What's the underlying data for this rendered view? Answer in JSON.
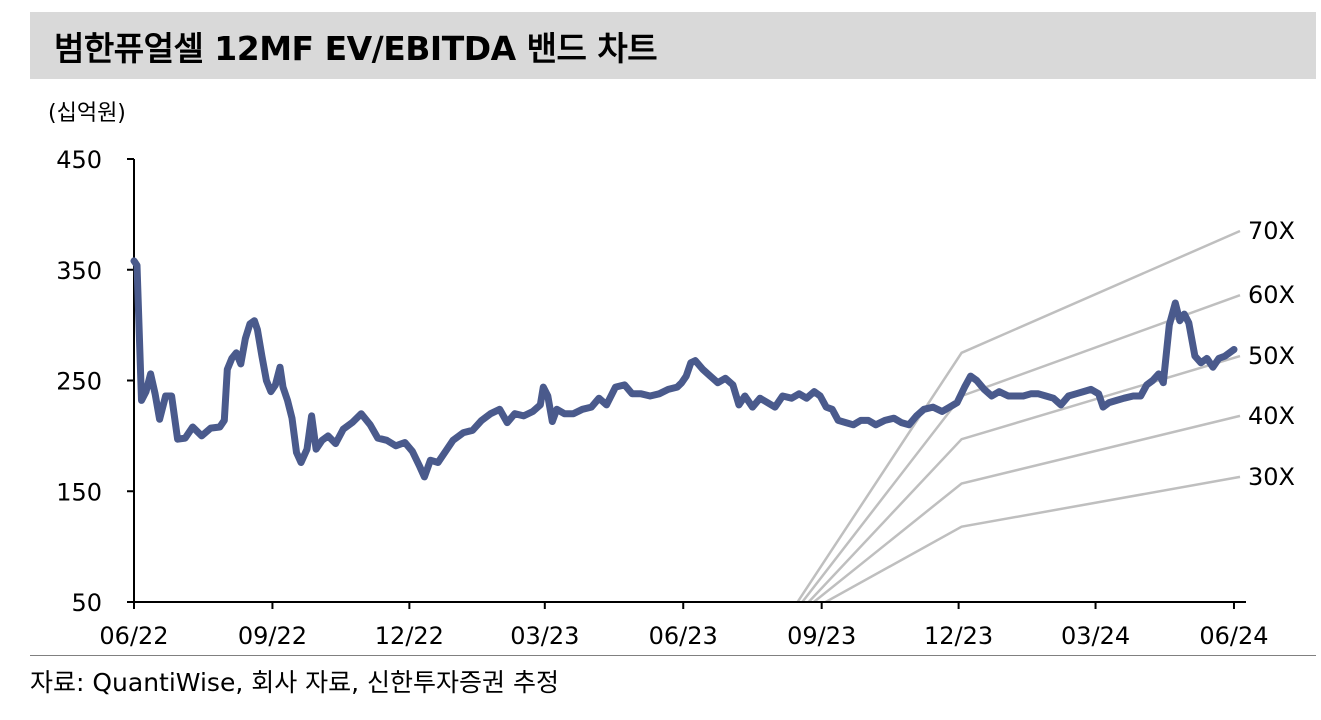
{
  "header": {
    "title": "범한퓨얼셀 12MF EV/EBITDA 밴드 차트"
  },
  "unit_label": "(십억원)",
  "source": "자료: QuantiWise, 회사 자료, 신한투자증권 추정",
  "colors": {
    "price_line": "#4a5a8c",
    "band_line": "#bfbfbf",
    "title_bg": "#d9d9d9",
    "axis": "#000000"
  },
  "chart_data": {
    "type": "line",
    "title": "범한퓨얼셀 12MF EV/EBITDA 밴드 차트",
    "ylabel": "(십억원)",
    "xlabel": "",
    "ylim": [
      50,
      450
    ],
    "y_ticks": [
      450,
      350,
      250,
      150,
      50
    ],
    "x_range": [
      "2022-06-01",
      "2024-06-05"
    ],
    "x_ticks": [
      {
        "date": "2022-06-01",
        "label": "06/22"
      },
      {
        "date": "2022-09-01",
        "label": "09/22"
      },
      {
        "date": "2022-12-01",
        "label": "12/22"
      },
      {
        "date": "2023-03-01",
        "label": "03/23"
      },
      {
        "date": "2023-06-01",
        "label": "06/23"
      },
      {
        "date": "2023-09-01",
        "label": "09/23"
      },
      {
        "date": "2023-12-01",
        "label": "12/23"
      },
      {
        "date": "2024-03-01",
        "label": "03/24"
      },
      {
        "date": "2024-06-01",
        "label": "06/24"
      }
    ],
    "grid": false,
    "legend": "none",
    "series": [
      {
        "role": "price",
        "points": [
          [
            "2022-06-01",
            358
          ],
          [
            "2022-06-03",
            354
          ],
          [
            "2022-06-06",
            232
          ],
          [
            "2022-06-09",
            240
          ],
          [
            "2022-06-12",
            256
          ],
          [
            "2022-06-15",
            238
          ],
          [
            "2022-06-18",
            215
          ],
          [
            "2022-06-22",
            236
          ],
          [
            "2022-06-26",
            236
          ],
          [
            "2022-06-30",
            197
          ],
          [
            "2022-07-05",
            198
          ],
          [
            "2022-07-10",
            208
          ],
          [
            "2022-07-16",
            200
          ],
          [
            "2022-07-22",
            207
          ],
          [
            "2022-07-28",
            208
          ],
          [
            "2022-07-31",
            214
          ],
          [
            "2022-08-02",
            260
          ],
          [
            "2022-08-05",
            270
          ],
          [
            "2022-08-08",
            275
          ],
          [
            "2022-08-11",
            265
          ],
          [
            "2022-08-14",
            288
          ],
          [
            "2022-08-17",
            301
          ],
          [
            "2022-08-20",
            304
          ],
          [
            "2022-08-22",
            296
          ],
          [
            "2022-08-25",
            272
          ],
          [
            "2022-08-28",
            250
          ],
          [
            "2022-08-31",
            240
          ],
          [
            "2022-09-03",
            246
          ],
          [
            "2022-09-06",
            262
          ],
          [
            "2022-09-08",
            244
          ],
          [
            "2022-09-11",
            232
          ],
          [
            "2022-09-14",
            216
          ],
          [
            "2022-09-17",
            185
          ],
          [
            "2022-09-20",
            176
          ],
          [
            "2022-09-24",
            188
          ],
          [
            "2022-09-27",
            218
          ],
          [
            "2022-09-30",
            188
          ],
          [
            "2022-10-04",
            196
          ],
          [
            "2022-10-08",
            200
          ],
          [
            "2022-10-13",
            193
          ],
          [
            "2022-10-18",
            206
          ],
          [
            "2022-10-24",
            212
          ],
          [
            "2022-10-30",
            220
          ],
          [
            "2022-11-05",
            210
          ],
          [
            "2022-11-10",
            198
          ],
          [
            "2022-11-16",
            196
          ],
          [
            "2022-11-22",
            191
          ],
          [
            "2022-11-28",
            194
          ],
          [
            "2022-12-03",
            186
          ],
          [
            "2022-12-08",
            172
          ],
          [
            "2022-12-11",
            163
          ],
          [
            "2022-12-15",
            178
          ],
          [
            "2022-12-20",
            176
          ],
          [
            "2022-12-25",
            186
          ],
          [
            "2022-12-30",
            196
          ],
          [
            "2023-01-06",
            203
          ],
          [
            "2023-01-12",
            205
          ],
          [
            "2023-01-18",
            214
          ],
          [
            "2023-01-24",
            220
          ],
          [
            "2023-01-30",
            224
          ],
          [
            "2023-02-04",
            212
          ],
          [
            "2023-02-09",
            220
          ],
          [
            "2023-02-15",
            218
          ],
          [
            "2023-02-21",
            222
          ],
          [
            "2023-02-26",
            228
          ],
          [
            "2023-02-28",
            244
          ],
          [
            "2023-03-03",
            236
          ],
          [
            "2023-03-06",
            213
          ],
          [
            "2023-03-09",
            224
          ],
          [
            "2023-03-14",
            220
          ],
          [
            "2023-03-20",
            220
          ],
          [
            "2023-03-26",
            224
          ],
          [
            "2023-04-01",
            226
          ],
          [
            "2023-04-06",
            234
          ],
          [
            "2023-04-11",
            228
          ],
          [
            "2023-04-17",
            244
          ],
          [
            "2023-04-23",
            246
          ],
          [
            "2023-04-28",
            238
          ],
          [
            "2023-05-04",
            238
          ],
          [
            "2023-05-10",
            236
          ],
          [
            "2023-05-16",
            238
          ],
          [
            "2023-05-22",
            242
          ],
          [
            "2023-05-28",
            244
          ],
          [
            "2023-05-31",
            248
          ],
          [
            "2023-06-03",
            254
          ],
          [
            "2023-06-06",
            266
          ],
          [
            "2023-06-09",
            268
          ],
          [
            "2023-06-14",
            260
          ],
          [
            "2023-06-19",
            254
          ],
          [
            "2023-06-24",
            248
          ],
          [
            "2023-06-29",
            252
          ],
          [
            "2023-07-04",
            246
          ],
          [
            "2023-07-08",
            228
          ],
          [
            "2023-07-12",
            236
          ],
          [
            "2023-07-17",
            226
          ],
          [
            "2023-07-22",
            234
          ],
          [
            "2023-07-27",
            230
          ],
          [
            "2023-08-01",
            226
          ],
          [
            "2023-08-06",
            236
          ],
          [
            "2023-08-12",
            234
          ],
          [
            "2023-08-17",
            238
          ],
          [
            "2023-08-22",
            234
          ],
          [
            "2023-08-27",
            240
          ],
          [
            "2023-08-31",
            236
          ],
          [
            "2023-09-04",
            226
          ],
          [
            "2023-09-08",
            224
          ],
          [
            "2023-09-12",
            214
          ],
          [
            "2023-09-17",
            212
          ],
          [
            "2023-09-22",
            210
          ],
          [
            "2023-09-27",
            214
          ],
          [
            "2023-10-02",
            214
          ],
          [
            "2023-10-07",
            210
          ],
          [
            "2023-10-13",
            214
          ],
          [
            "2023-10-19",
            216
          ],
          [
            "2023-10-24",
            212
          ],
          [
            "2023-10-29",
            210
          ],
          [
            "2023-11-03",
            218
          ],
          [
            "2023-11-08",
            224
          ],
          [
            "2023-11-14",
            226
          ],
          [
            "2023-11-20",
            222
          ],
          [
            "2023-11-25",
            226
          ],
          [
            "2023-11-30",
            230
          ],
          [
            "2023-12-05",
            244
          ],
          [
            "2023-12-09",
            254
          ],
          [
            "2023-12-13",
            250
          ],
          [
            "2023-12-18",
            242
          ],
          [
            "2023-12-23",
            236
          ],
          [
            "2023-12-28",
            240
          ],
          [
            "2024-01-03",
            236
          ],
          [
            "2024-01-08",
            236
          ],
          [
            "2024-01-13",
            236
          ],
          [
            "2024-01-18",
            238
          ],
          [
            "2024-01-23",
            238
          ],
          [
            "2024-01-28",
            236
          ],
          [
            "2024-02-02",
            234
          ],
          [
            "2024-02-07",
            228
          ],
          [
            "2024-02-12",
            236
          ],
          [
            "2024-02-17",
            238
          ],
          [
            "2024-02-22",
            240
          ],
          [
            "2024-02-27",
            242
          ],
          [
            "2024-03-03",
            238
          ],
          [
            "2024-03-06",
            226
          ],
          [
            "2024-03-10",
            230
          ],
          [
            "2024-03-15",
            232
          ],
          [
            "2024-03-20",
            234
          ],
          [
            "2024-03-26",
            236
          ],
          [
            "2024-03-31",
            236
          ],
          [
            "2024-04-04",
            246
          ],
          [
            "2024-04-08",
            250
          ],
          [
            "2024-04-12",
            256
          ],
          [
            "2024-04-15",
            248
          ],
          [
            "2024-04-19",
            300
          ],
          [
            "2024-04-23",
            320
          ],
          [
            "2024-04-26",
            304
          ],
          [
            "2024-04-29",
            310
          ],
          [
            "2024-05-02",
            302
          ],
          [
            "2024-05-06",
            272
          ],
          [
            "2024-05-10",
            266
          ],
          [
            "2024-05-14",
            270
          ],
          [
            "2024-05-18",
            262
          ],
          [
            "2024-05-22",
            270
          ],
          [
            "2024-05-26",
            272
          ],
          [
            "2024-06-01",
            278
          ]
        ]
      },
      {
        "name": "70X",
        "role": "band",
        "points": [
          [
            "2023-08-15",
            48
          ],
          [
            "2023-12-03",
            275
          ],
          [
            "2024-06-05",
            385
          ]
        ]
      },
      {
        "name": "60X",
        "role": "band",
        "points": [
          [
            "2023-08-18",
            48
          ],
          [
            "2023-12-03",
            236
          ],
          [
            "2024-06-05",
            327
          ]
        ]
      },
      {
        "name": "50X",
        "role": "band",
        "points": [
          [
            "2023-08-22",
            48
          ],
          [
            "2023-12-03",
            197
          ],
          [
            "2024-06-05",
            272
          ]
        ]
      },
      {
        "name": "40X",
        "role": "band",
        "points": [
          [
            "2023-08-25",
            48
          ],
          [
            "2023-12-03",
            157
          ],
          [
            "2024-06-05",
            218
          ]
        ]
      },
      {
        "name": "30X",
        "role": "band",
        "points": [
          [
            "2023-09-01",
            48
          ],
          [
            "2023-12-03",
            118
          ],
          [
            "2024-06-05",
            163
          ]
        ]
      }
    ]
  }
}
